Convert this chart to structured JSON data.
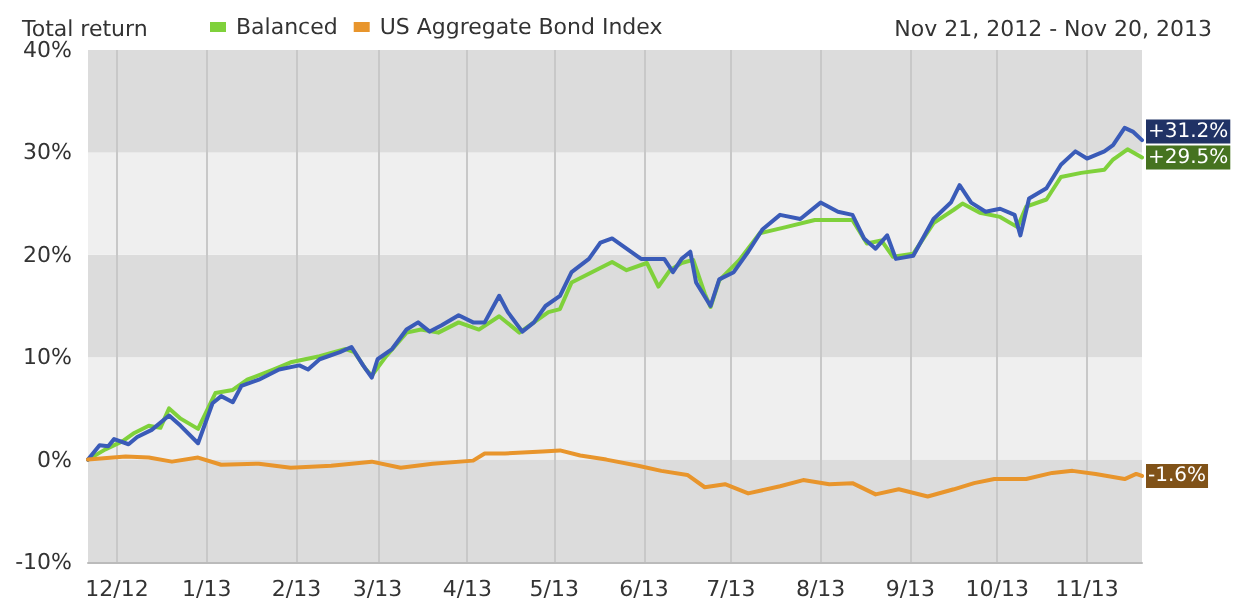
{
  "chart_data": {
    "type": "line",
    "title": "Total return",
    "subtitle": "Nov 21, 2012 - Nov 20, 2013",
    "legend": "top",
    "grid": "x",
    "marker": "none",
    "line_style": "solid",
    "xlim": [
      "2012-11-21",
      "2013-11-20"
    ],
    "xticks": [
      {
        "value": "2012-12-01",
        "label": "12/12"
      },
      {
        "value": "2013-01-01",
        "label": "1/13"
      },
      {
        "value": "2013-02-01",
        "label": "2/13"
      },
      {
        "value": "2013-03-01",
        "label": "3/13"
      },
      {
        "value": "2013-04-01",
        "label": "4/13"
      },
      {
        "value": "2013-05-01",
        "label": "5/13"
      },
      {
        "value": "2013-06-01",
        "label": "6/13"
      },
      {
        "value": "2013-07-01",
        "label": "7/13"
      },
      {
        "value": "2013-08-01",
        "label": "8/13"
      },
      {
        "value": "2013-09-01",
        "label": "9/13"
      },
      {
        "value": "2013-10-01",
        "label": "10/13"
      },
      {
        "value": "2013-11-01",
        "label": "11/13"
      }
    ],
    "ylim": [
      -10,
      40
    ],
    "yticks": [
      {
        "value": -10,
        "label": "-10%"
      },
      {
        "value": 0,
        "label": "0%"
      },
      {
        "value": 10,
        "label": "10%"
      },
      {
        "value": 20,
        "label": "20%"
      },
      {
        "value": 30,
        "label": "30%"
      },
      {
        "value": 40,
        "label": "40%"
      }
    ],
    "series": [
      {
        "name": "Balanced",
        "color": "#7fd13b",
        "x": [
          "2012-11-21",
          "2012-11-27",
          "2012-12-03",
          "2012-12-07",
          "2012-12-12",
          "2012-12-16",
          "2012-12-19",
          "2012-12-23",
          "2012-12-29",
          "2013-01-04",
          "2013-01-10",
          "2013-01-15",
          "2013-01-24",
          "2013-01-30",
          "2013-02-09",
          "2013-02-18",
          "2013-02-21",
          "2013-02-25",
          "2013-02-27",
          "2013-03-04",
          "2013-03-11",
          "2013-03-16",
          "2013-03-22",
          "2013-03-29",
          "2013-04-05",
          "2013-04-12",
          "2013-04-19",
          "2013-04-24",
          "2013-04-29",
          "2013-05-03",
          "2013-05-07",
          "2013-05-14",
          "2013-05-21",
          "2013-05-26",
          "2013-06-02",
          "2013-06-06",
          "2013-06-10",
          "2013-06-14",
          "2013-06-18",
          "2013-06-22",
          "2013-06-24",
          "2013-06-27",
          "2013-07-04",
          "2013-07-11",
          "2013-07-20",
          "2013-07-30",
          "2013-08-07",
          "2013-08-12",
          "2013-08-17",
          "2013-08-22",
          "2013-08-26",
          "2013-09-02",
          "2013-09-09",
          "2013-09-16",
          "2013-09-19",
          "2013-09-25",
          "2013-10-02",
          "2013-10-08",
          "2013-10-11",
          "2013-10-18",
          "2013-10-23",
          "2013-10-30",
          "2013-11-07",
          "2013-11-10",
          "2013-11-15",
          "2013-11-20"
        ],
        "values": [
          0,
          1.0,
          1.8,
          2.6,
          3.3,
          3.1,
          5.0,
          4.0,
          3.0,
          6.5,
          6.8,
          7.8,
          8.8,
          9.5,
          10.1,
          10.8,
          10.5,
          8.8,
          8.2,
          10.1,
          12.4,
          12.7,
          12.4,
          13.4,
          12.7,
          14.0,
          12.4,
          13.4,
          14.4,
          14.7,
          17.3,
          18.3,
          19.3,
          18.5,
          19.2,
          16.9,
          18.5,
          19.2,
          19.5,
          16.2,
          14.9,
          17.5,
          19.5,
          22.1,
          22.7,
          23.4,
          23.4,
          23.4,
          21.1,
          21.4,
          19.8,
          20.1,
          23.1,
          24.4,
          25.0,
          24.1,
          23.7,
          22.7,
          24.7,
          25.4,
          27.6,
          28.0,
          28.3,
          29.3,
          30.3,
          29.5
        ]
      },
      {
        "color": "#3a5bb8",
        "x": [
          "2012-11-21",
          "2012-11-25",
          "2012-11-28",
          "2012-11-30",
          "2012-12-05",
          "2012-12-08",
          "2012-12-13",
          "2012-12-19",
          "2012-12-23",
          "2012-12-29",
          "2013-01-03",
          "2013-01-06",
          "2013-01-10",
          "2013-01-13",
          "2013-01-19",
          "2013-01-26",
          "2013-02-02",
          "2013-02-05",
          "2013-02-09",
          "2013-02-16",
          "2013-02-20",
          "2013-02-24",
          "2013-02-27",
          "2013-03-01",
          "2013-03-06",
          "2013-03-11",
          "2013-03-15",
          "2013-03-19",
          "2013-03-23",
          "2013-03-29",
          "2013-04-03",
          "2013-04-07",
          "2013-04-12",
          "2013-04-15",
          "2013-04-20",
          "2013-04-24",
          "2013-04-28",
          "2013-05-03",
          "2013-05-07",
          "2013-05-13",
          "2013-05-17",
          "2013-05-21",
          "2013-05-26",
          "2013-05-31",
          "2013-06-04",
          "2013-06-08",
          "2013-06-11",
          "2013-06-14",
          "2013-06-17",
          "2013-06-19",
          "2013-06-24",
          "2013-06-27",
          "2013-07-02",
          "2013-07-07",
          "2013-07-12",
          "2013-07-18",
          "2013-07-25",
          "2013-08-01",
          "2013-08-07",
          "2013-08-12",
          "2013-08-16",
          "2013-08-20",
          "2013-08-24",
          "2013-08-27",
          "2013-09-02",
          "2013-09-09",
          "2013-09-15",
          "2013-09-18",
          "2013-09-22",
          "2013-09-27",
          "2013-10-02",
          "2013-10-07",
          "2013-10-09",
          "2013-10-12",
          "2013-10-18",
          "2013-10-23",
          "2013-10-28",
          "2013-11-01",
          "2013-11-07",
          "2013-11-10",
          "2013-11-14",
          "2013-11-17",
          "2013-11-20"
        ],
        "values": [
          0,
          1.4,
          1.3,
          2.0,
          1.5,
          2.2,
          2.9,
          4.3,
          3.3,
          1.6,
          5.5,
          6.2,
          5.6,
          7.2,
          7.8,
          8.8,
          9.2,
          8.8,
          9.8,
          10.5,
          11.0,
          9.2,
          8.0,
          9.8,
          10.8,
          12.7,
          13.4,
          12.5,
          13.1,
          14.1,
          13.4,
          13.4,
          16.0,
          14.4,
          12.5,
          13.4,
          15.0,
          16.0,
          18.3,
          19.6,
          21.2,
          21.6,
          20.6,
          19.6,
          19.6,
          19.6,
          18.3,
          19.6,
          20.3,
          17.3,
          15.0,
          17.6,
          18.3,
          20.3,
          22.5,
          23.9,
          23.5,
          25.1,
          24.2,
          23.9,
          21.6,
          20.6,
          21.9,
          19.6,
          19.9,
          23.5,
          25.1,
          26.8,
          25.1,
          24.2,
          24.5,
          23.9,
          21.9,
          25.5,
          26.5,
          28.8,
          30.1,
          29.4,
          30.1,
          30.7,
          32.4,
          32.0,
          31.2
        ]
      },
      {
        "name": "US Aggregate Bond Index",
        "color": "#e8952c",
        "x": [
          "2012-11-21",
          "2012-12-04",
          "2012-12-12",
          "2012-12-20",
          "2012-12-29",
          "2013-01-06",
          "2013-01-19",
          "2013-01-30",
          "2013-02-13",
          "2013-02-27",
          "2013-03-09",
          "2013-03-20",
          "2013-04-03",
          "2013-04-07",
          "2013-04-14",
          "2013-04-27",
          "2013-05-03",
          "2013-05-10",
          "2013-05-19",
          "2013-05-30",
          "2013-06-07",
          "2013-06-16",
          "2013-06-22",
          "2013-06-29",
          "2013-07-07",
          "2013-07-18",
          "2013-07-26",
          "2013-08-04",
          "2013-08-12",
          "2013-08-20",
          "2013-08-28",
          "2013-09-07",
          "2013-09-16",
          "2013-09-23",
          "2013-09-30",
          "2013-10-11",
          "2013-10-20",
          "2013-10-27",
          "2013-11-04",
          "2013-11-14",
          "2013-11-18",
          "2013-11-20"
        ],
        "values": [
          0,
          0.3,
          0.2,
          -0.2,
          0.2,
          -0.5,
          -0.4,
          -0.8,
          -0.6,
          -0.2,
          -0.8,
          -0.4,
          -0.1,
          0.6,
          0.6,
          0.8,
          0.9,
          0.4,
          0,
          -0.6,
          -1.1,
          -1.5,
          -2.7,
          -2.4,
          -3.3,
          -2.6,
          -2.0,
          -2.4,
          -2.3,
          -3.4,
          -2.9,
          -3.6,
          -2.9,
          -2.3,
          -1.9,
          -1.9,
          -1.3,
          -1.1,
          -1.4,
          -1.9,
          -1.4,
          -1.6
        ]
      }
    ],
    "annotations": [
      {
        "text": "+29.5%",
        "x": "2013-11-20",
        "y": 29.5
      },
      {
        "text": "+31.2%",
        "x": "2013-11-20",
        "y": 31.2
      },
      {
        "text": "-1.6%",
        "x": "2013-11-20",
        "y": -1.6
      }
    ]
  }
}
